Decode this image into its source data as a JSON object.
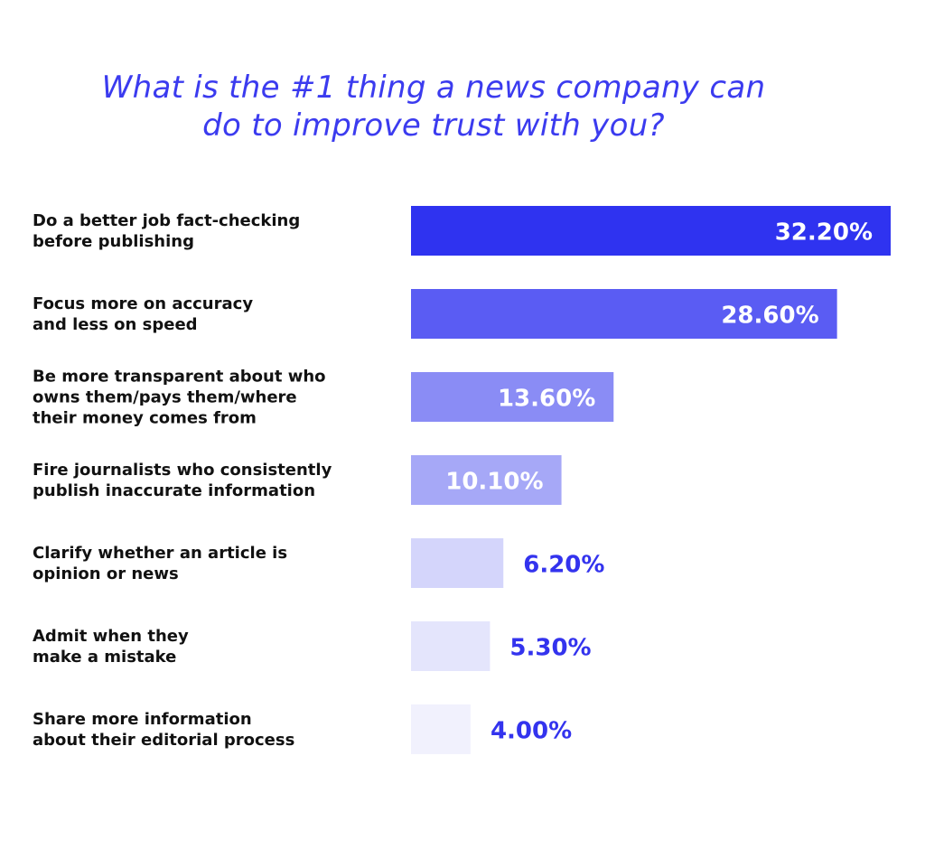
{
  "title": {
    "line1": "What is the #1 thing a news company can",
    "line2": "do to improve trust with you?"
  },
  "colors": {
    "title": "#3b3bef",
    "label_text": "#111111",
    "inside_value_text": "#ffffff",
    "outside_value_text": "#3333ee",
    "bars": [
      "#2f33f0",
      "#5a5cf3",
      "#8a8cf5",
      "#a6a8f7",
      "#d4d5fb",
      "#e4e5fc",
      "#f1f1fd"
    ]
  },
  "chart_data": {
    "type": "bar",
    "orientation": "horizontal",
    "title": "What is the #1 thing a news company can do to improve trust with you?",
    "categories": [
      [
        "Do a better job fact-checking",
        "before publishing"
      ],
      [
        "Focus more on accuracy",
        "and less on speed"
      ],
      [
        "Be more transparent about who",
        "owns them/pays them/where",
        "their money comes from"
      ],
      [
        "Fire journalists who consistently",
        "publish inaccurate information"
      ],
      [
        "Clarify whether an article is",
        "opinion or news"
      ],
      [
        "Admit when they",
        "make a mistake"
      ],
      [
        "Share more information",
        "about their editorial process"
      ]
    ],
    "values": [
      32.2,
      28.6,
      13.6,
      10.1,
      6.2,
      5.3,
      4.0
    ],
    "value_labels": [
      "32.20%",
      "28.60%",
      "13.60%",
      "10.10%",
      "6.20%",
      "5.30%",
      "4.00%"
    ],
    "xlim": [
      0,
      32.2
    ],
    "grid": false,
    "legend": "none"
  }
}
